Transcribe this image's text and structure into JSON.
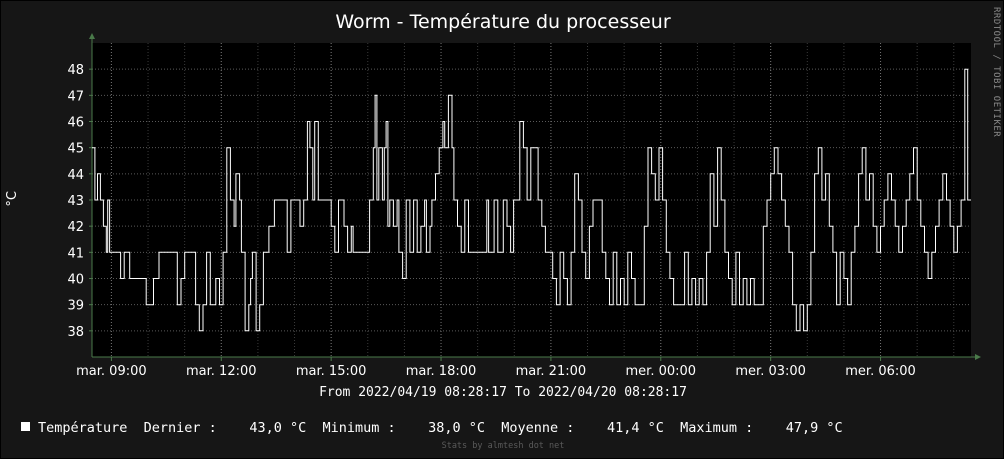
{
  "chart_data": {
    "type": "line",
    "title": "Worm - Température du processeur",
    "ylabel": "°C",
    "ylim": [
      37,
      49
    ],
    "yticks": [
      38,
      39,
      40,
      41,
      42,
      43,
      44,
      45,
      46,
      47,
      48
    ],
    "xlim_hours": [
      8.47,
      32.47
    ],
    "xticks": [
      {
        "label": "mar. 09:00",
        "hour": 9
      },
      {
        "label": "mar. 12:00",
        "hour": 12
      },
      {
        "label": "mar. 15:00",
        "hour": 15
      },
      {
        "label": "mar. 18:00",
        "hour": 18
      },
      {
        "label": "mar. 21:00",
        "hour": 21
      },
      {
        "label": "mer. 00:00",
        "hour": 24
      },
      {
        "label": "mer. 03:00",
        "hour": 27
      },
      {
        "label": "mer. 06:00",
        "hour": 30
      }
    ],
    "grid": true,
    "series": [
      {
        "name": "Température",
        "color": "#ffffff",
        "points": [
          [
            8.47,
            45
          ],
          [
            8.55,
            43
          ],
          [
            8.62,
            44
          ],
          [
            8.7,
            43
          ],
          [
            8.78,
            42
          ],
          [
            8.86,
            41
          ],
          [
            8.9,
            43
          ],
          [
            8.95,
            41
          ],
          [
            9.15,
            41
          ],
          [
            9.25,
            40
          ],
          [
            9.35,
            41
          ],
          [
            9.5,
            40
          ],
          [
            9.85,
            40
          ],
          [
            9.95,
            39
          ],
          [
            10.05,
            39
          ],
          [
            10.15,
            40
          ],
          [
            10.3,
            41
          ],
          [
            10.7,
            41
          ],
          [
            10.8,
            39
          ],
          [
            10.9,
            40
          ],
          [
            11.0,
            41
          ],
          [
            11.2,
            41
          ],
          [
            11.3,
            39
          ],
          [
            11.4,
            38
          ],
          [
            11.5,
            39
          ],
          [
            11.6,
            41
          ],
          [
            11.7,
            39
          ],
          [
            11.85,
            40
          ],
          [
            11.95,
            39
          ],
          [
            12.05,
            41
          ],
          [
            12.15,
            45
          ],
          [
            12.25,
            43
          ],
          [
            12.35,
            42
          ],
          [
            12.4,
            44
          ],
          [
            12.5,
            43
          ],
          [
            12.55,
            41
          ],
          [
            12.65,
            38
          ],
          [
            12.75,
            39
          ],
          [
            12.8,
            40
          ],
          [
            12.85,
            41
          ],
          [
            12.95,
            38
          ],
          [
            13.05,
            39
          ],
          [
            13.15,
            41
          ],
          [
            13.3,
            42
          ],
          [
            13.45,
            43
          ],
          [
            13.7,
            43
          ],
          [
            13.8,
            41
          ],
          [
            13.9,
            43
          ],
          [
            14.05,
            43
          ],
          [
            14.15,
            42
          ],
          [
            14.25,
            43
          ],
          [
            14.35,
            46
          ],
          [
            14.42,
            45
          ],
          [
            14.5,
            43
          ],
          [
            14.55,
            46
          ],
          [
            14.65,
            43
          ],
          [
            14.9,
            43
          ],
          [
            15.0,
            42
          ],
          [
            15.1,
            41
          ],
          [
            15.2,
            43
          ],
          [
            15.35,
            42
          ],
          [
            15.45,
            41
          ],
          [
            15.55,
            42
          ],
          [
            15.6,
            41
          ],
          [
            15.95,
            41
          ],
          [
            16.05,
            43
          ],
          [
            16.15,
            45
          ],
          [
            16.2,
            47
          ],
          [
            16.25,
            43
          ],
          [
            16.3,
            45
          ],
          [
            16.4,
            43
          ],
          [
            16.45,
            45
          ],
          [
            16.5,
            46
          ],
          [
            16.55,
            42
          ],
          [
            16.6,
            43
          ],
          [
            16.7,
            42
          ],
          [
            16.8,
            43
          ],
          [
            16.85,
            41
          ],
          [
            16.95,
            40
          ],
          [
            17.05,
            43
          ],
          [
            17.15,
            41
          ],
          [
            17.25,
            43
          ],
          [
            17.35,
            41
          ],
          [
            17.45,
            42
          ],
          [
            17.55,
            43
          ],
          [
            17.6,
            41
          ],
          [
            17.7,
            42
          ],
          [
            17.75,
            43
          ],
          [
            17.85,
            44
          ],
          [
            17.95,
            45
          ],
          [
            18.05,
            46
          ],
          [
            18.1,
            45
          ],
          [
            18.2,
            47
          ],
          [
            18.3,
            45
          ],
          [
            18.35,
            43
          ],
          [
            18.45,
            42
          ],
          [
            18.55,
            41
          ],
          [
            18.65,
            43
          ],
          [
            18.75,
            41
          ],
          [
            18.85,
            41
          ],
          [
            19.15,
            41
          ],
          [
            19.25,
            43
          ],
          [
            19.3,
            41
          ],
          [
            19.45,
            43
          ],
          [
            19.55,
            41
          ],
          [
            19.7,
            43
          ],
          [
            19.8,
            42
          ],
          [
            19.9,
            41
          ],
          [
            19.98,
            43
          ],
          [
            20.05,
            43
          ],
          [
            20.15,
            46
          ],
          [
            20.25,
            45
          ],
          [
            20.35,
            43
          ],
          [
            20.45,
            45
          ],
          [
            20.55,
            45
          ],
          [
            20.65,
            43
          ],
          [
            20.75,
            42
          ],
          [
            20.85,
            41
          ],
          [
            20.95,
            41
          ],
          [
            21.05,
            40
          ],
          [
            21.15,
            39
          ],
          [
            21.25,
            41
          ],
          [
            21.35,
            40
          ],
          [
            21.45,
            39
          ],
          [
            21.55,
            41
          ],
          [
            21.65,
            44
          ],
          [
            21.75,
            43
          ],
          [
            21.85,
            41
          ],
          [
            21.95,
            40
          ],
          [
            22.05,
            42
          ],
          [
            22.15,
            43
          ],
          [
            22.3,
            43
          ],
          [
            22.4,
            41
          ],
          [
            22.5,
            40
          ],
          [
            22.6,
            39
          ],
          [
            22.7,
            41
          ],
          [
            22.8,
            39
          ],
          [
            22.9,
            40
          ],
          [
            23.0,
            39
          ],
          [
            23.1,
            41
          ],
          [
            23.2,
            40
          ],
          [
            23.3,
            39
          ],
          [
            23.45,
            39
          ],
          [
            23.55,
            42
          ],
          [
            23.65,
            45
          ],
          [
            23.75,
            44
          ],
          [
            23.85,
            43
          ],
          [
            23.95,
            45
          ],
          [
            24.05,
            43
          ],
          [
            24.15,
            41
          ],
          [
            24.25,
            40
          ],
          [
            24.35,
            39
          ],
          [
            24.55,
            39
          ],
          [
            24.65,
            41
          ],
          [
            24.75,
            39
          ],
          [
            24.85,
            40
          ],
          [
            24.95,
            39
          ],
          [
            25.05,
            40
          ],
          [
            25.15,
            39
          ],
          [
            25.25,
            41
          ],
          [
            25.35,
            44
          ],
          [
            25.45,
            42
          ],
          [
            25.55,
            45
          ],
          [
            25.65,
            43
          ],
          [
            25.75,
            41
          ],
          [
            25.85,
            40
          ],
          [
            25.95,
            39
          ],
          [
            26.05,
            41
          ],
          [
            26.15,
            39
          ],
          [
            26.25,
            40
          ],
          [
            26.35,
            39
          ],
          [
            26.45,
            40
          ],
          [
            26.55,
            39
          ],
          [
            26.7,
            39
          ],
          [
            26.8,
            42
          ],
          [
            26.9,
            43
          ],
          [
            27.0,
            44
          ],
          [
            27.1,
            45
          ],
          [
            27.2,
            44
          ],
          [
            27.3,
            43
          ],
          [
            27.4,
            42
          ],
          [
            27.5,
            41
          ],
          [
            27.6,
            39
          ],
          [
            27.7,
            38
          ],
          [
            27.8,
            39
          ],
          [
            27.9,
            38
          ],
          [
            28.0,
            39
          ],
          [
            28.1,
            41
          ],
          [
            28.2,
            44
          ],
          [
            28.3,
            45
          ],
          [
            28.4,
            43
          ],
          [
            28.5,
            44
          ],
          [
            28.6,
            42
          ],
          [
            28.7,
            41
          ],
          [
            28.8,
            39
          ],
          [
            28.9,
            41
          ],
          [
            29.0,
            40
          ],
          [
            29.1,
            39
          ],
          [
            29.2,
            41
          ],
          [
            29.3,
            42
          ],
          [
            29.4,
            44
          ],
          [
            29.5,
            45
          ],
          [
            29.6,
            43
          ],
          [
            29.7,
            44
          ],
          [
            29.8,
            42
          ],
          [
            29.9,
            41
          ],
          [
            30.0,
            42
          ],
          [
            30.1,
            43
          ],
          [
            30.2,
            44
          ],
          [
            30.3,
            43
          ],
          [
            30.4,
            42
          ],
          [
            30.5,
            41
          ],
          [
            30.6,
            42
          ],
          [
            30.7,
            43
          ],
          [
            30.8,
            44
          ],
          [
            30.9,
            45
          ],
          [
            31.0,
            43
          ],
          [
            31.1,
            42
          ],
          [
            31.2,
            41
          ],
          [
            31.3,
            40
          ],
          [
            31.4,
            41
          ],
          [
            31.5,
            42
          ],
          [
            31.6,
            43
          ],
          [
            31.7,
            44
          ],
          [
            31.8,
            43
          ],
          [
            31.9,
            42
          ],
          [
            32.0,
            41
          ],
          [
            32.1,
            42
          ],
          [
            32.2,
            43
          ],
          [
            32.3,
            48
          ],
          [
            32.38,
            43
          ],
          [
            32.47,
            43
          ]
        ]
      }
    ]
  },
  "texts": {
    "side": "RRDTOOL / TOBI OETIKER",
    "range": "From 2022/04/19 08:28:17 To 2022/04/20 08:28:17",
    "legend": "Température  Dernier :    43,0 °C  Minimum :    38,0 °C  Moyenne :    41,4 °C  Maximum :    47,9 °C",
    "credit": "Stats by almtesh dot net"
  }
}
